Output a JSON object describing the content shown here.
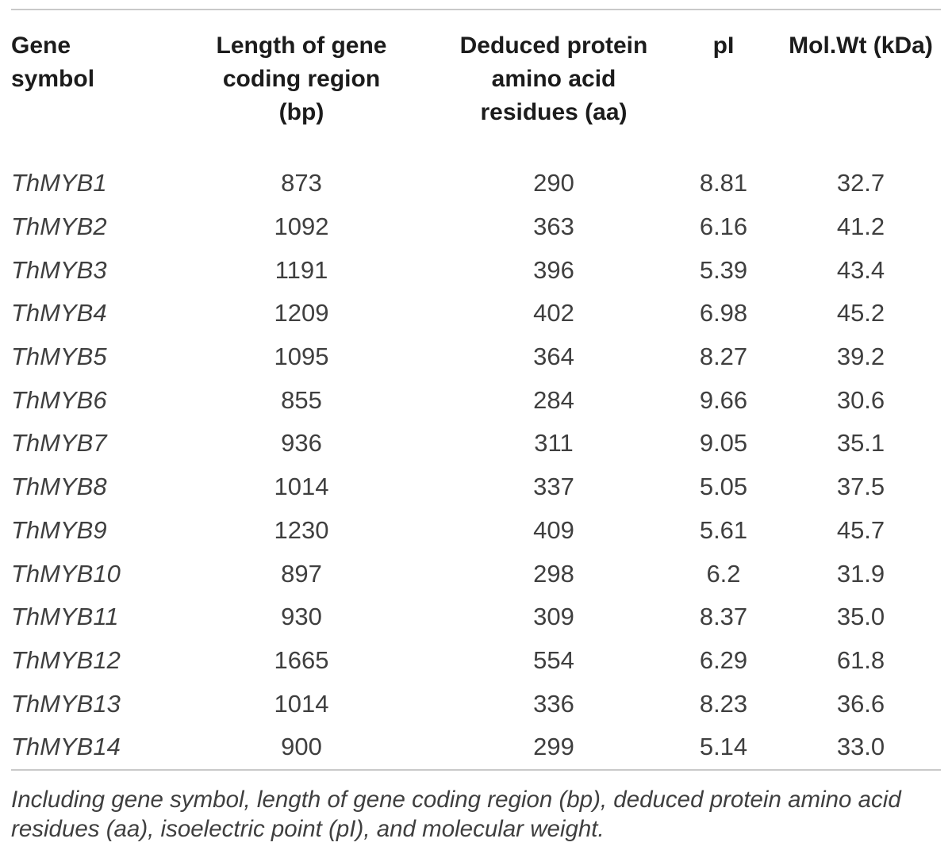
{
  "table": {
    "columns": [
      {
        "label": "Gene\nsymbol"
      },
      {
        "label": "Length of gene\ncoding region\n(bp)"
      },
      {
        "label": "Deduced protein\namino acid\nresidues (aa)"
      },
      {
        "label": "pI"
      },
      {
        "label": "Mol.Wt (kDa)"
      }
    ],
    "rows": [
      {
        "gene_symbol": "ThMYB1",
        "length_bp": "873",
        "residues_aa": "290",
        "pi": "8.81",
        "mol_wt_kda": "32.7"
      },
      {
        "gene_symbol": "ThMYB2",
        "length_bp": "1092",
        "residues_aa": "363",
        "pi": "6.16",
        "mol_wt_kda": "41.2"
      },
      {
        "gene_symbol": "ThMYB3",
        "length_bp": "1191",
        "residues_aa": "396",
        "pi": "5.39",
        "mol_wt_kda": "43.4"
      },
      {
        "gene_symbol": "ThMYB4",
        "length_bp": "1209",
        "residues_aa": "402",
        "pi": "6.98",
        "mol_wt_kda": "45.2"
      },
      {
        "gene_symbol": "ThMYB5",
        "length_bp": "1095",
        "residues_aa": "364",
        "pi": "8.27",
        "mol_wt_kda": "39.2"
      },
      {
        "gene_symbol": "ThMYB6",
        "length_bp": "855",
        "residues_aa": "284",
        "pi": "9.66",
        "mol_wt_kda": "30.6"
      },
      {
        "gene_symbol": "ThMYB7",
        "length_bp": "936",
        "residues_aa": "311",
        "pi": "9.05",
        "mol_wt_kda": "35.1"
      },
      {
        "gene_symbol": "ThMYB8",
        "length_bp": "1014",
        "residues_aa": "337",
        "pi": "5.05",
        "mol_wt_kda": "37.5"
      },
      {
        "gene_symbol": "ThMYB9",
        "length_bp": "1230",
        "residues_aa": "409",
        "pi": "5.61",
        "mol_wt_kda": "45.7"
      },
      {
        "gene_symbol": "ThMYB10",
        "length_bp": "897",
        "residues_aa": "298",
        "pi": "6.2",
        "mol_wt_kda": "31.9"
      },
      {
        "gene_symbol": "ThMYB11",
        "length_bp": "930",
        "residues_aa": "309",
        "pi": "8.37",
        "mol_wt_kda": "35.0"
      },
      {
        "gene_symbol": "ThMYB12",
        "length_bp": "1665",
        "residues_aa": "554",
        "pi": "6.29",
        "mol_wt_kda": "61.8"
      },
      {
        "gene_symbol": "ThMYB13",
        "length_bp": "1014",
        "residues_aa": "336",
        "pi": "8.23",
        "mol_wt_kda": "36.6"
      },
      {
        "gene_symbol": "ThMYB14",
        "length_bp": "900",
        "residues_aa": "299",
        "pi": "5.14",
        "mol_wt_kda": "33.0"
      }
    ],
    "footnote": "Including gene symbol, length of gene coding region (bp), deduced protein amino acid residues (aa), isoelectric point (pI), and molecular weight."
  },
  "colors": {
    "rule": "#c9c9c9",
    "header_text": "#1c1c1c",
    "body_text": "#3f3f3f",
    "background": "#ffffff"
  }
}
